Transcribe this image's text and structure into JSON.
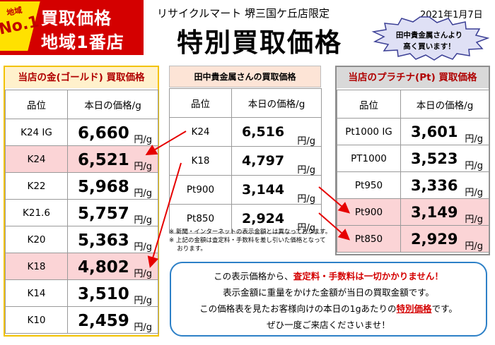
{
  "badge": {
    "region": "地域",
    "no1": "No.1",
    "line1": "買取価格",
    "line2": "地域1番店"
  },
  "header": {
    "store": "リサイクルマート 堺三国ケ丘店限定",
    "date": "2021年1月7日",
    "title": "特別買取価格",
    "burst_line1": "田中貴金属さんより",
    "burst_line2": "高く買います！"
  },
  "colors": {
    "gold_border": "#f2c200",
    "highlight": "#fbd4d6",
    "accent_red": "#d40000",
    "info_border": "#2d80c7"
  },
  "gold": {
    "title": "当店の金(ゴールド) 買取価格",
    "col_grade": "品位",
    "col_price": "本日の価格/g",
    "unit": "円/g",
    "rows": [
      {
        "grade": "K24 IG",
        "price": "6,660",
        "highlight": false
      },
      {
        "grade": "K24",
        "price": "6,521",
        "highlight": true
      },
      {
        "grade": "K22",
        "price": "5,968",
        "highlight": false
      },
      {
        "grade": "K21.6",
        "price": "5,757",
        "highlight": false
      },
      {
        "grade": "K20",
        "price": "5,363",
        "highlight": false
      },
      {
        "grade": "K18",
        "price": "4,802",
        "highlight": true
      },
      {
        "grade": "K14",
        "price": "3,510",
        "highlight": false
      },
      {
        "grade": "K10",
        "price": "2,459",
        "highlight": false
      }
    ]
  },
  "tanaka": {
    "title": "田中貴金属さんの買取価格",
    "col_grade": "品位",
    "col_price": "本日の価格/g",
    "unit": "円/g",
    "rows": [
      {
        "grade": "K24",
        "price": "6,516"
      },
      {
        "grade": "K18",
        "price": "4,797"
      },
      {
        "grade": "Pt900",
        "price": "3,144"
      },
      {
        "grade": "Pt850",
        "price": "2,924"
      }
    ]
  },
  "platinum": {
    "title": "当店のプラチナ(Pt) 買取価格",
    "col_grade": "品位",
    "col_price": "本日の価格/g",
    "unit": "円/g",
    "rows": [
      {
        "grade": "Pt1000 IG",
        "price": "3,601",
        "highlight": false
      },
      {
        "grade": "PT1000",
        "price": "3,523",
        "highlight": false
      },
      {
        "grade": "Pt950",
        "price": "3,336",
        "highlight": false
      },
      {
        "grade": "Pt900",
        "price": "3,149",
        "highlight": true
      },
      {
        "grade": "Pt850",
        "price": "2,929",
        "highlight": true
      }
    ]
  },
  "notes": [
    "※ 新聞・インターネットの表示金額とは異なっております。",
    "※ 上記の金額は査定料・手数料を差し引いた価格となって",
    "　 おります。"
  ],
  "info": {
    "line1_pre": "この表示価格から、",
    "line1_red": "査定料・手数料は一切かかりません！",
    "line2": "表示金額に重量をかけた金額が当日の買取金額です。",
    "line3_pre": "この価格表を見たお客様向けの本日の1gあたりの",
    "line3_red": "特別価格",
    "line3_post": "です。",
    "line4": "ぜひ一度ご来店くださいませ！"
  }
}
